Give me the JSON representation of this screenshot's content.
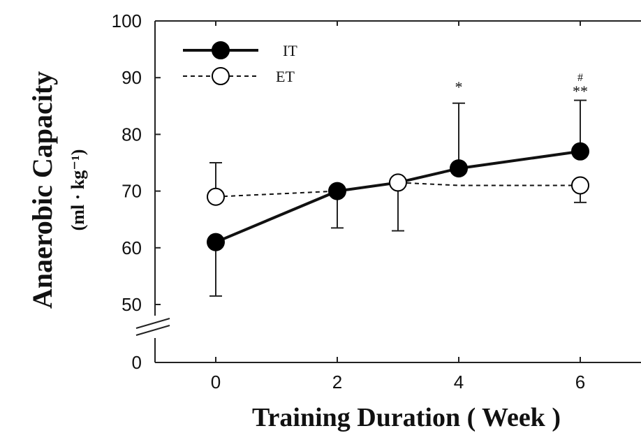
{
  "chart_data": {
    "type": "line",
    "xlabel": "Training Duration ( Week )",
    "ylabel": "Anaerobic Capacity",
    "ylabel_unit": "(ml · kg⁻¹)",
    "xlim": [
      -1,
      7
    ],
    "ylim": [
      0,
      100
    ],
    "y_axis_break": true,
    "grid": false,
    "legend_position": "top-left",
    "x_ticks": [
      0,
      2,
      4,
      6
    ],
    "y_ticks": [
      0,
      50,
      60,
      70,
      80,
      90,
      100
    ],
    "series": [
      {
        "name": "IT",
        "line_style": "solid",
        "marker": "filled-circle",
        "x": [
          0,
          2,
          3,
          4,
          6
        ],
        "y": [
          61,
          70,
          71.5,
          74,
          77
        ],
        "error_bars": [
          {
            "x": 0,
            "low": 51.5
          },
          {
            "x": 2,
            "low": 63.5
          },
          {
            "x": 4,
            "high": 85.5
          },
          {
            "x": 6,
            "high": 86
          }
        ]
      },
      {
        "name": "ET",
        "line_style": "dashed",
        "marker": "open-circle",
        "x": [
          0,
          2,
          3,
          4,
          6
        ],
        "y": [
          69,
          70,
          71.5,
          71,
          71
        ],
        "error_bars": [
          {
            "x": 0,
            "high": 75
          },
          {
            "x": 3,
            "low": 63
          },
          {
            "x": 6,
            "low": 68
          }
        ]
      }
    ],
    "annotations": [
      {
        "x": 4,
        "text": "*"
      },
      {
        "x": 6,
        "text": "#"
      },
      {
        "x": 6,
        "text": "**"
      }
    ]
  }
}
